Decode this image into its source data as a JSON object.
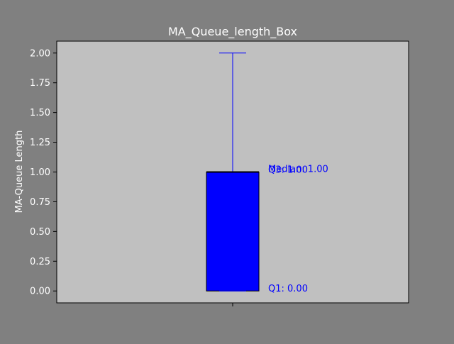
{
  "chart_data": {
    "type": "box",
    "title": "MA_Queue_length_Box",
    "xlabel": "",
    "ylabel": "MA-Queue Length",
    "ylim": [
      -0.1,
      2.1
    ],
    "y_ticks": [
      0.0,
      0.25,
      0.5,
      0.75,
      1.0,
      1.25,
      1.5,
      1.75,
      2.0
    ],
    "y_tick_labels": [
      "0.00",
      "0.25",
      "0.50",
      "0.75",
      "1.00",
      "1.25",
      "1.50",
      "1.75",
      "2.00"
    ],
    "box": {
      "whisker_low": 0.0,
      "q1": 0.0,
      "median": 1.0,
      "q3": 1.0,
      "whisker_high": 2.0
    },
    "annotations": {
      "median": "Median: 1.00",
      "q3": "Q3: 1.00",
      "q1": "Q1: 0.00"
    },
    "colors": {
      "figure_bg": "#808080",
      "axes_bg": "#c0c0c0",
      "box": "#0000ff",
      "median_line": "#000000",
      "title_text": "#ffffff",
      "tick_text": "#ffffff",
      "annotation_text": "#0000ff"
    }
  }
}
